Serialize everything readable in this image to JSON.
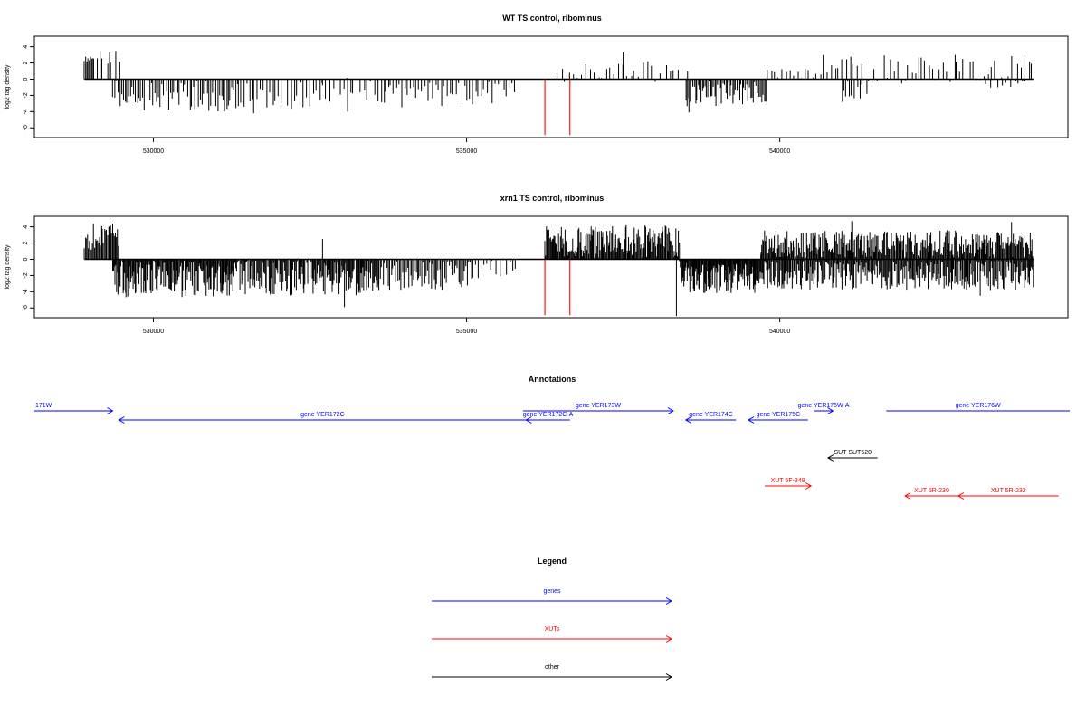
{
  "colors": {
    "genes": "#0000ff",
    "XUTs": "#ff0000",
    "other": "#000000"
  },
  "annotations_title": "Annotations",
  "legend_title": "Legend",
  "legend": [
    {
      "label": "genes",
      "category": "genes"
    },
    {
      "label": "XUTs",
      "category": "XUTs"
    },
    {
      "label": "other",
      "category": "other"
    }
  ],
  "chart_data": [
    {
      "type": "bar",
      "title": "WT TS control, ribominus",
      "ylabel": "log2 tag density",
      "xlim": [
        528100,
        544600
      ],
      "ylim": [
        -7.2,
        5.3
      ],
      "xticks": [
        530000,
        535000,
        540000
      ],
      "yticks": [
        4,
        2,
        0,
        -2,
        -4,
        -6
      ],
      "markers": [
        536250,
        536650
      ],
      "marker_color": "#ff0000",
      "segments": [
        {
          "start": 528900,
          "end": 529050,
          "step": 20,
          "sign": 1,
          "base": 2.4,
          "amp": 0.4
        },
        {
          "start": 529050,
          "end": 529500,
          "step": 70,
          "sign": 1,
          "base": 2.6,
          "amp": 1.0
        },
        {
          "start": 529350,
          "end": 531350,
          "step": 28,
          "sign": -1,
          "base": 2.0,
          "amp": 2.0
        },
        {
          "start": 531350,
          "end": 532700,
          "step": 50,
          "sign": -1,
          "base": 2.0,
          "amp": 2.0
        },
        {
          "start": 532700,
          "end": 533700,
          "step": 55,
          "sign": -1,
          "base": 1.5,
          "amp": 1.7
        },
        {
          "start": 533700,
          "end": 535800,
          "step": 45,
          "sign": -1,
          "base": 1.8,
          "amp": 1.8
        },
        {
          "start": 536450,
          "end": 538300,
          "step": 65,
          "sign": 1,
          "base": 0.9,
          "amp": 1.5
        },
        {
          "start": 538300,
          "end": 538500,
          "step": 100,
          "sign": 1,
          "base": 1.0,
          "amp": 0.5
        },
        {
          "start": 538500,
          "end": 539800,
          "step": 22,
          "sign": -1,
          "base": 1.8,
          "amp": 1.6
        },
        {
          "start": 539800,
          "end": 540700,
          "step": 60,
          "sign": 1,
          "base": 0.8,
          "amp": 0.7
        },
        {
          "start": 540700,
          "end": 541300,
          "step": 60,
          "sign": 1,
          "base": 1.6,
          "amp": 1.4
        },
        {
          "start": 541000,
          "end": 541500,
          "step": 28,
          "sign": -1,
          "base": 1.3,
          "amp": 1.3
        },
        {
          "start": 541500,
          "end": 544050,
          "step": 55,
          "sign": 1,
          "base": 1.2,
          "amp": 1.8
        },
        {
          "start": 543300,
          "end": 544000,
          "step": 80,
          "sign": -1,
          "base": 0.8,
          "amp": 0.8
        }
      ],
      "spikes": [
        {
          "x": 529150,
          "y": 3.5
        },
        {
          "x": 529300,
          "y": 3.3
        },
        {
          "x": 531600,
          "y": -4.2
        },
        {
          "x": 533100,
          "y": -4.0
        },
        {
          "x": 537500,
          "y": 3.3
        },
        {
          "x": 538550,
          "y": -4.1
        },
        {
          "x": 540700,
          "y": 3.0
        },
        {
          "x": 541000,
          "y": -2.8
        },
        {
          "x": 542800,
          "y": 3.0
        },
        {
          "x": 543900,
          "y": 3.0
        }
      ]
    },
    {
      "type": "bar",
      "title": "xrn1 TS control, ribominus",
      "ylabel": "log2 tag density",
      "xlim": [
        528100,
        544600
      ],
      "ylim": [
        -7.2,
        5.3
      ],
      "xticks": [
        530000,
        535000,
        540000
      ],
      "yticks": [
        4,
        2,
        0,
        -2,
        -4,
        -6
      ],
      "markers": [
        536250,
        536650
      ],
      "marker_color": "#ff0000",
      "segments": [
        {
          "start": 528900,
          "end": 529450,
          "step": 16,
          "sign": 1,
          "base": 2.8,
          "amp": 1.7
        },
        {
          "start": 529350,
          "end": 531300,
          "step": 12,
          "sign": -1,
          "base": 2.4,
          "amp": 2.3
        },
        {
          "start": 531300,
          "end": 533600,
          "step": 14,
          "sign": -1,
          "base": 2.2,
          "amp": 2.3
        },
        {
          "start": 533600,
          "end": 535100,
          "step": 22,
          "sign": -1,
          "base": 2.0,
          "amp": 1.8
        },
        {
          "start": 535100,
          "end": 535800,
          "step": 45,
          "sign": -1,
          "base": 1.2,
          "amp": 1.2
        },
        {
          "start": 536250,
          "end": 538400,
          "step": 13,
          "sign": 1,
          "base": 2.2,
          "amp": 2.0
        },
        {
          "start": 538400,
          "end": 539700,
          "step": 11,
          "sign": -1,
          "base": 2.2,
          "amp": 2.0
        },
        {
          "start": 539700,
          "end": 540200,
          "step": 40,
          "sign": 1,
          "base": 1.4,
          "amp": 1.2
        },
        {
          "start": 539700,
          "end": 544050,
          "step": 14,
          "sign": 1,
          "base": 1.9,
          "amp": 1.7
        },
        {
          "start": 539700,
          "end": 544050,
          "step": 15,
          "sign": -1,
          "base": 2.0,
          "amp": 1.8
        }
      ],
      "spikes": [
        {
          "x": 529350,
          "y": 4.4
        },
        {
          "x": 532700,
          "y": 2.5
        },
        {
          "x": 533050,
          "y": -5.9
        },
        {
          "x": 538350,
          "y": -7.0
        },
        {
          "x": 541150,
          "y": 4.7
        },
        {
          "x": 543700,
          "y": 4.6
        },
        {
          "x": 543200,
          "y": -4.5
        }
      ]
    }
  ],
  "annotations": [
    {
      "label": "171W",
      "category": "genes",
      "start": 528000,
      "end": 529350,
      "direction": "right",
      "row": 0
    },
    {
      "label": "gene YER172C",
      "category": "genes",
      "start": 529450,
      "end": 535950,
      "direction": "left",
      "row": 1
    },
    {
      "label": "gene YER172C-A",
      "category": "genes",
      "start": 535950,
      "end": 536650,
      "direction": "left",
      "row": 1
    },
    {
      "label": "gene YER173W",
      "category": "genes",
      "start": 535900,
      "end": 538300,
      "direction": "right",
      "row": 0
    },
    {
      "label": "gene YER174C",
      "category": "genes",
      "start": 538500,
      "end": 539300,
      "direction": "left",
      "row": 1
    },
    {
      "label": "gene YER175C",
      "category": "genes",
      "start": 539500,
      "end": 540450,
      "direction": "left",
      "row": 1
    },
    {
      "label": "gene YER175W-A",
      "category": "genes",
      "start": 540550,
      "end": 540850,
      "direction": "right",
      "row": 0
    },
    {
      "label": "gene YER176W",
      "category": "genes",
      "start": 541700,
      "end": 546000,
      "direction": "right",
      "row": 0
    },
    {
      "label": "SUT SUT520",
      "category": "other",
      "start": 540770,
      "end": 541560,
      "direction": "left",
      "row": 2
    },
    {
      "label": "XUT 5F-348",
      "category": "XUTs",
      "start": 539760,
      "end": 540500,
      "direction": "right",
      "row": 3
    },
    {
      "label": "XUT 5R-230",
      "category": "XUTs",
      "start": 542000,
      "end": 542850,
      "direction": "left",
      "row": 4
    },
    {
      "label": "XUT 5R-232",
      "category": "XUTs",
      "start": 542850,
      "end": 544450,
      "direction": "left",
      "row": 4
    }
  ]
}
